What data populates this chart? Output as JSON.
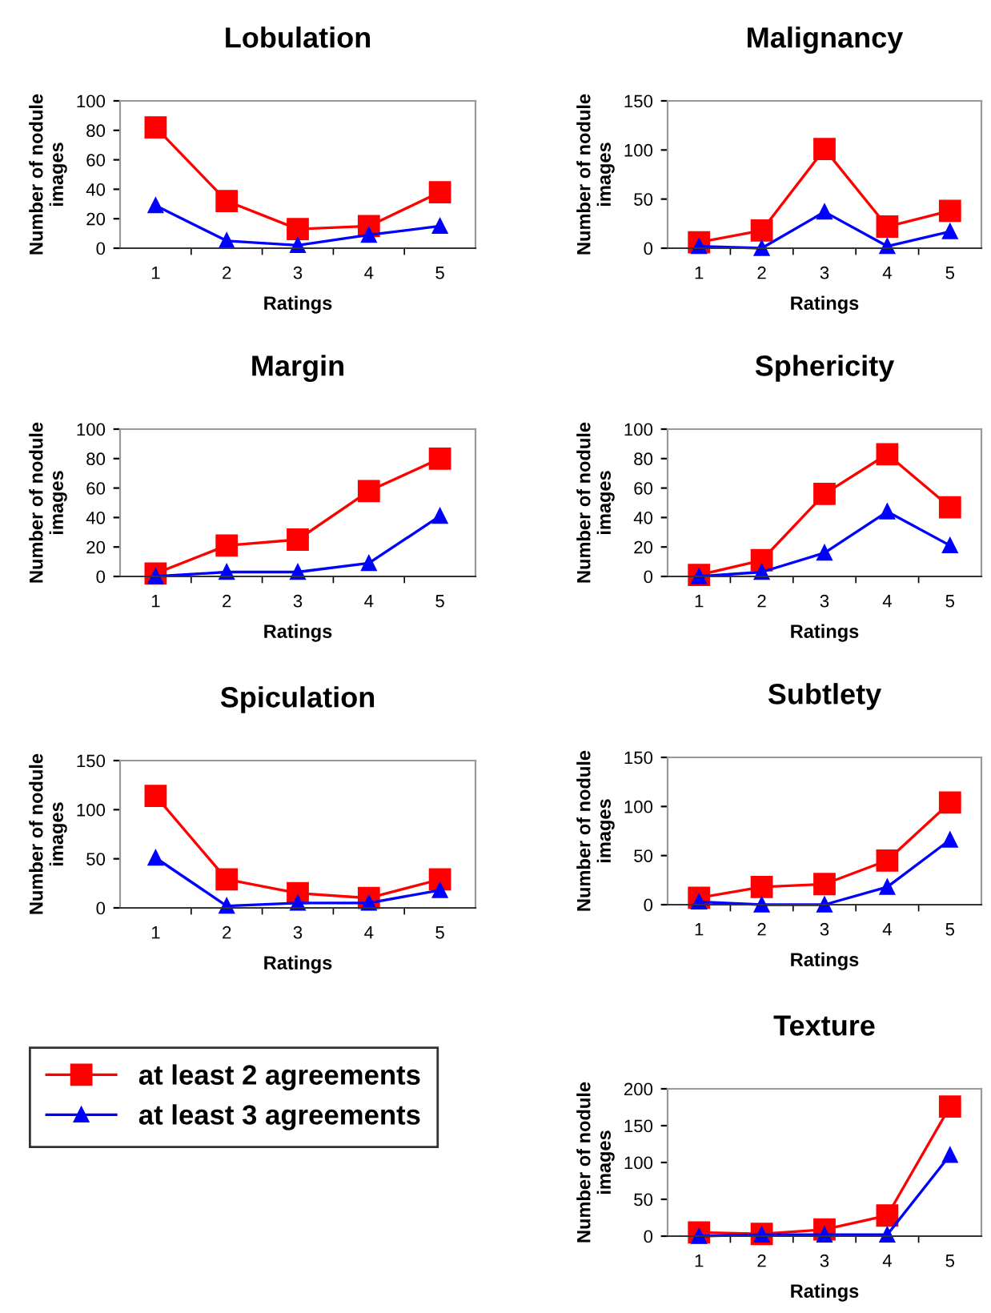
{
  "chart_data": [
    {
      "type": "line",
      "title": "Lobulation",
      "xlabel": "Ratings",
      "ylabel": "Number of nodule\nimages",
      "categories": [
        "1",
        "2",
        "3",
        "4",
        "5"
      ],
      "ylim": [
        0,
        100
      ],
      "yticks": [
        0,
        20,
        40,
        60,
        80,
        100
      ],
      "grid": false,
      "legend": false,
      "series": [
        {
          "color": "#ff0000",
          "marker": "square",
          "values": [
            82,
            32,
            13,
            15,
            38
          ]
        },
        {
          "color": "#0000ff",
          "marker": "triangle",
          "values": [
            29,
            5,
            2,
            9,
            15
          ]
        }
      ]
    },
    {
      "type": "line",
      "title": "Malignancy",
      "xlabel": "Ratings",
      "ylabel": "Number of nodule\nimages",
      "categories": [
        "1",
        "2",
        "3",
        "4",
        "5"
      ],
      "ylim": [
        0,
        150
      ],
      "yticks": [
        0,
        50,
        100,
        150
      ],
      "grid": false,
      "legend": false,
      "series": [
        {
          "color": "#ff0000",
          "marker": "square",
          "values": [
            6,
            18,
            101,
            22,
            38
          ]
        },
        {
          "color": "#0000ff",
          "marker": "triangle",
          "values": [
            2,
            0,
            37,
            2,
            17
          ]
        }
      ]
    },
    {
      "type": "line",
      "title": "Margin",
      "xlabel": "Ratings",
      "ylabel": "Number of nodule\nimages",
      "categories": [
        "1",
        "2",
        "3",
        "4",
        "5"
      ],
      "ylim": [
        0,
        100
      ],
      "yticks": [
        0,
        20,
        40,
        60,
        80,
        100
      ],
      "grid": false,
      "legend": false,
      "series": [
        {
          "color": "#ff0000",
          "marker": "square",
          "values": [
            2,
            21,
            25,
            58,
            80
          ]
        },
        {
          "color": "#0000ff",
          "marker": "triangle",
          "values": [
            0,
            3,
            3,
            9,
            41
          ]
        }
      ]
    },
    {
      "type": "line",
      "title": "Sphericity",
      "xlabel": "Ratings",
      "ylabel": "Number of nodule\nimages",
      "categories": [
        "1",
        "2",
        "3",
        "4",
        "5"
      ],
      "ylim": [
        0,
        100
      ],
      "yticks": [
        0,
        20,
        40,
        60,
        80,
        100
      ],
      "grid": false,
      "legend": false,
      "series": [
        {
          "color": "#ff0000",
          "marker": "square",
          "values": [
            1,
            11,
            56,
            83,
            47
          ]
        },
        {
          "color": "#0000ff",
          "marker": "triangle",
          "values": [
            0,
            3,
            16,
            44,
            21
          ]
        }
      ]
    },
    {
      "type": "line",
      "title": "Spiculation",
      "xlabel": "Ratings",
      "ylabel": "Number of nodule\nimages",
      "categories": [
        "1",
        "2",
        "3",
        "4",
        "5"
      ],
      "ylim": [
        0,
        150
      ],
      "yticks": [
        0,
        50,
        100,
        150
      ],
      "grid": false,
      "legend": false,
      "series": [
        {
          "color": "#ff0000",
          "marker": "square",
          "values": [
            114,
            29,
            15,
            10,
            29
          ]
        },
        {
          "color": "#0000ff",
          "marker": "triangle",
          "values": [
            51,
            2,
            5,
            5,
            18
          ]
        }
      ]
    },
    {
      "type": "line",
      "title": "Subtlety",
      "xlabel": "Ratings",
      "ylabel": "Number of nodule\nimages",
      "categories": [
        "1",
        "2",
        "3",
        "4",
        "5"
      ],
      "ylim": [
        0,
        150
      ],
      "yticks": [
        0,
        50,
        100,
        150
      ],
      "grid": false,
      "legend": false,
      "series": [
        {
          "color": "#ff0000",
          "marker": "square",
          "values": [
            7,
            18,
            21,
            45,
            104
          ]
        },
        {
          "color": "#0000ff",
          "marker": "triangle",
          "values": [
            3,
            0,
            0,
            18,
            66
          ]
        }
      ]
    },
    {
      "type": "line",
      "title": "Texture",
      "xlabel": "Ratings",
      "ylabel": "Number of nodule\nimages",
      "categories": [
        "1",
        "2",
        "3",
        "4",
        "5"
      ],
      "ylim": [
        0,
        200
      ],
      "yticks": [
        0,
        50,
        100,
        150,
        200
      ],
      "grid": false,
      "legend": "left",
      "series": [
        {
          "name": "at least 2 agreements",
          "color": "#ff0000",
          "marker": "square",
          "values": [
            5,
            3,
            9,
            28,
            176
          ]
        },
        {
          "name": "at least 3 agreements",
          "color": "#0000ff",
          "marker": "triangle",
          "values": [
            0,
            2,
            2,
            2,
            110
          ]
        }
      ]
    }
  ]
}
